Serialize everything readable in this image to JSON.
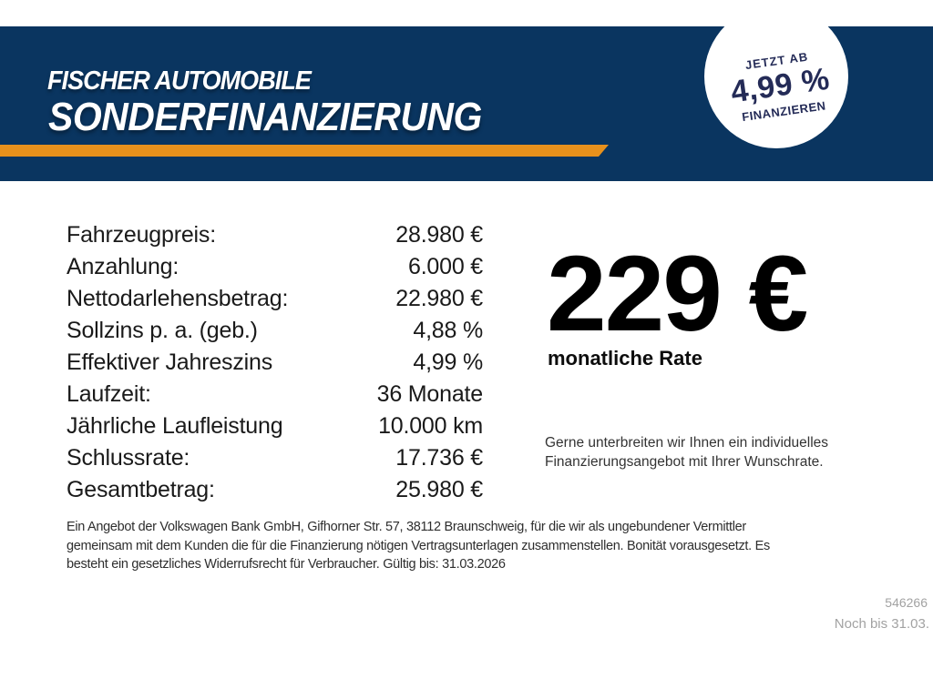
{
  "header": {
    "dealer": "FISCHER AUTOMOBILE",
    "title": "SONDERFINANZIERUNG"
  },
  "badge": {
    "line1": "JETZT AB",
    "rate": "4,99 %",
    "line2": "FINANZIEREN"
  },
  "financing": {
    "rows": [
      {
        "label": "Fahrzeugpreis:",
        "value": "28.980 €"
      },
      {
        "label": "Anzahlung:",
        "value": "6.000 €"
      },
      {
        "label": "Nettodarlehensbetrag:",
        "value": "22.980 €"
      },
      {
        "label": "Sollzins p. a. (geb.)",
        "value": "4,88 %"
      },
      {
        "label": "Effektiver Jahreszins",
        "value": "4,99 %"
      },
      {
        "label": "Laufzeit:",
        "value": "36 Monate"
      },
      {
        "label": "Jährliche Laufleistung",
        "value": "10.000 km"
      },
      {
        "label": "Schlussrate:",
        "value": "17.736 €"
      },
      {
        "label": "Gesamtbetrag:",
        "value": "25.980 €"
      }
    ]
  },
  "rate": {
    "amount": "229 €",
    "caption": "monatliche Rate",
    "note_lines": [
      "Gerne unterbreiten wir Ihnen ein individuelles",
      "Finanzierungsangebot mit Ihrer Wunschrate."
    ]
  },
  "legal": {
    "lines": [
      "Ein Angebot der Volkswagen Bank GmbH, Gifhorner Str. 57, 38112 Braunschweig, für die wir als ungebundener Vermittler",
      "gemeinsam mit dem Kunden die für die Finanzierung nötigen Vertragsunterlagen zusammenstellen. Bonität vorausgesetzt. Es",
      "besteht ein gesetzliches Widerrufsrecht für Verbraucher. Gültig bis: 31.03.2026"
    ]
  },
  "footer": {
    "reference": "546266",
    "deadline": "Noch bis 31.03."
  },
  "colors": {
    "navy": "#0a3560",
    "orange": "#e8911c",
    "badge_text": "#242b57",
    "footer_gray": "#a2a2a2"
  }
}
